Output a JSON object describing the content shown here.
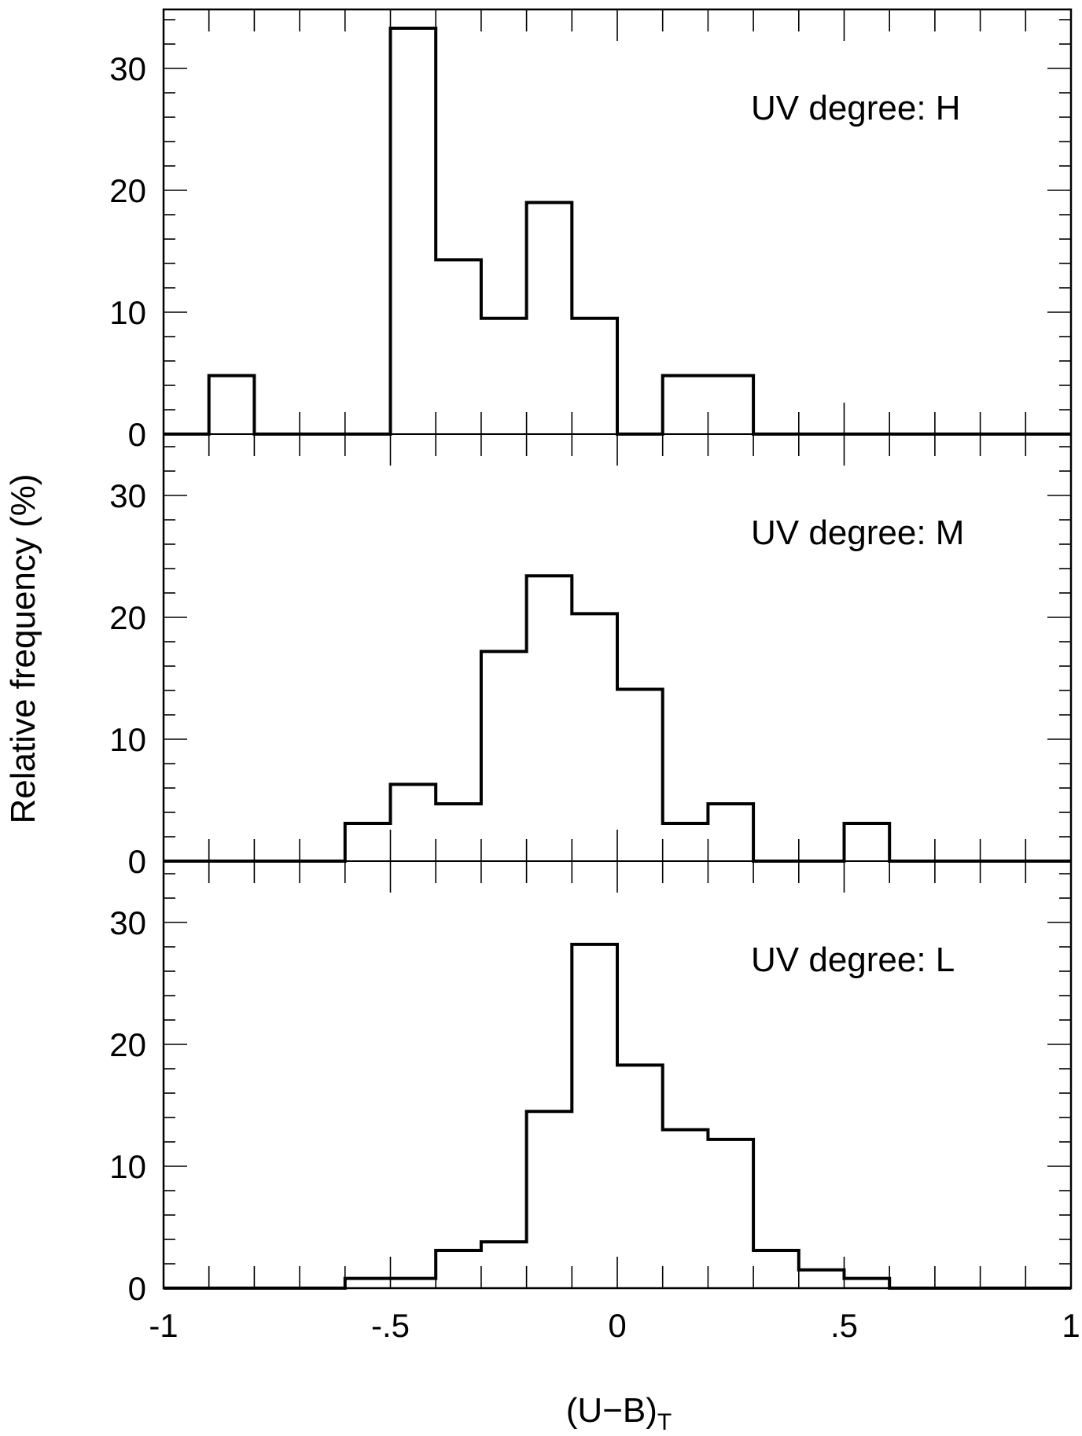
{
  "chart_data": {
    "type": "bar",
    "xlabel": "(U−B)",
    "xlabel_subscript": "T",
    "ylabel": "Relative frequency (%)",
    "xlim": [
      -1,
      1
    ],
    "ylim": [
      0,
      35
    ],
    "x_ticks": [
      -1,
      -0.5,
      0,
      0.5,
      1
    ],
    "x_tick_labels": [
      "-1",
      "-.5",
      "0",
      ".5",
      "1"
    ],
    "y_ticks": [
      0,
      10,
      20,
      30
    ],
    "y_tick_labels": [
      "0",
      "10",
      "20",
      "30"
    ],
    "grid": false,
    "bin_edges": [
      -1.0,
      -0.9,
      -0.8,
      -0.7,
      -0.6,
      -0.5,
      -0.4,
      -0.3,
      -0.2,
      -0.1,
      0.0,
      0.1,
      0.2,
      0.3,
      0.4,
      0.5,
      0.6,
      0.7,
      0.8,
      0.9,
      1.0
    ],
    "panels": [
      {
        "label": "UV degree: H",
        "values": [
          0,
          4.8,
          0,
          0,
          0,
          33.3,
          14.3,
          9.5,
          19.0,
          9.5,
          0,
          4.8,
          4.8,
          0,
          0,
          0,
          0,
          0,
          0,
          0
        ]
      },
      {
        "label": "UV degree: M",
        "values": [
          0,
          0,
          0,
          0,
          3.1,
          6.3,
          4.7,
          17.2,
          23.4,
          20.3,
          14.1,
          3.1,
          4.7,
          0,
          0,
          3.1,
          0,
          0,
          0,
          0
        ]
      },
      {
        "label": "UV degree: L",
        "values": [
          0,
          0,
          0,
          0,
          0.8,
          0.8,
          3.1,
          3.8,
          14.5,
          28.2,
          18.3,
          13.0,
          12.2,
          3.1,
          1.5,
          0.8,
          0,
          0,
          0,
          0
        ]
      }
    ]
  }
}
